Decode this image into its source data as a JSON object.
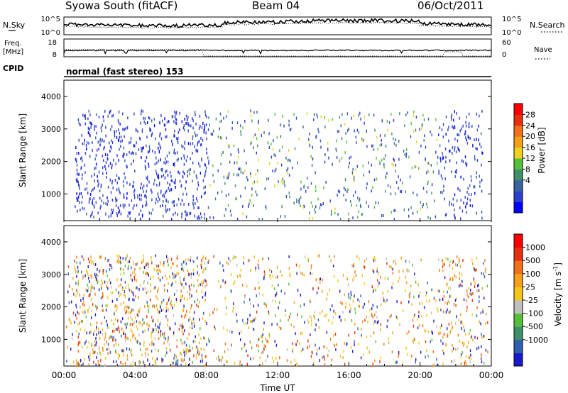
{
  "header": {
    "station": "Syowa South (fitACF)",
    "beam": "Beam 04",
    "date": "06/Oct/2011"
  },
  "panels_top": {
    "nsky_label": "N.Sky",
    "nsky_ticks": [
      "10^5",
      "10^0"
    ],
    "nsearch_label": "N.Search",
    "nsearch_ticks": [
      "10^5",
      "10^0"
    ],
    "freq_label": "Freq.",
    "freq_unit": "[MHz]",
    "freq_ticks": [
      "18",
      "8"
    ],
    "nave_label": "Nave",
    "nave_ticks": [
      "60",
      "0"
    ],
    "cpid_label": "CPID",
    "cpid_text": "normal (fast stereo) 153"
  },
  "chart_data": [
    {
      "type": "heatmap",
      "name": "power",
      "ylabel": "Slant Range [km]",
      "y_ticks": [
        "4000",
        "3000",
        "2000",
        "1000"
      ],
      "ylim": [
        180,
        4500
      ],
      "xlim": [
        0,
        24
      ],
      "colorbar_label": "Power [dB]",
      "colorbar_ticks": [
        "28",
        "24",
        "20",
        "16",
        "12",
        "8",
        "4"
      ],
      "colorbar_colors": [
        "#0000ff",
        "#2e3fd0",
        "#3a64a0",
        "#3f8f6a",
        "#56c03a",
        "#f0d21e",
        "#f4a018",
        "#f37018",
        "#e83010",
        "#ff0000"
      ],
      "dominant_bins": [
        {
          "range_h": [
            0,
            8
          ],
          "level_db": 4
        },
        {
          "range_h": [
            8,
            21
          ],
          "level_db": 12
        },
        {
          "range_h": [
            21,
            24
          ],
          "level_db": 6
        }
      ]
    },
    {
      "type": "heatmap",
      "name": "velocity",
      "ylabel": "Slant Range [km]",
      "y_ticks": [
        "4000",
        "3000",
        "2000",
        "1000"
      ],
      "ylim": [
        180,
        4500
      ],
      "xlim": [
        0,
        24
      ],
      "xlabel": "Time UT",
      "x_ticks": [
        "00:00",
        "04:00",
        "08:00",
        "12:00",
        "16:00",
        "20:00",
        "00:00"
      ],
      "colorbar_label": "Velocity [m s",
      "colorbar_label_exp": "-1",
      "colorbar_label_end": "]",
      "colorbar_ticks": [
        "1000",
        "500",
        "100",
        "25",
        "-25",
        "-100",
        "-500",
        "-1000"
      ],
      "colorbar_colors": [
        "#1a1acd",
        "#2e5fb0",
        "#3f8f6a",
        "#56c03a",
        "#c0c0c0",
        "#f7c418",
        "#f4a018",
        "#f37018",
        "#e83010",
        "#ff0000"
      ]
    }
  ]
}
